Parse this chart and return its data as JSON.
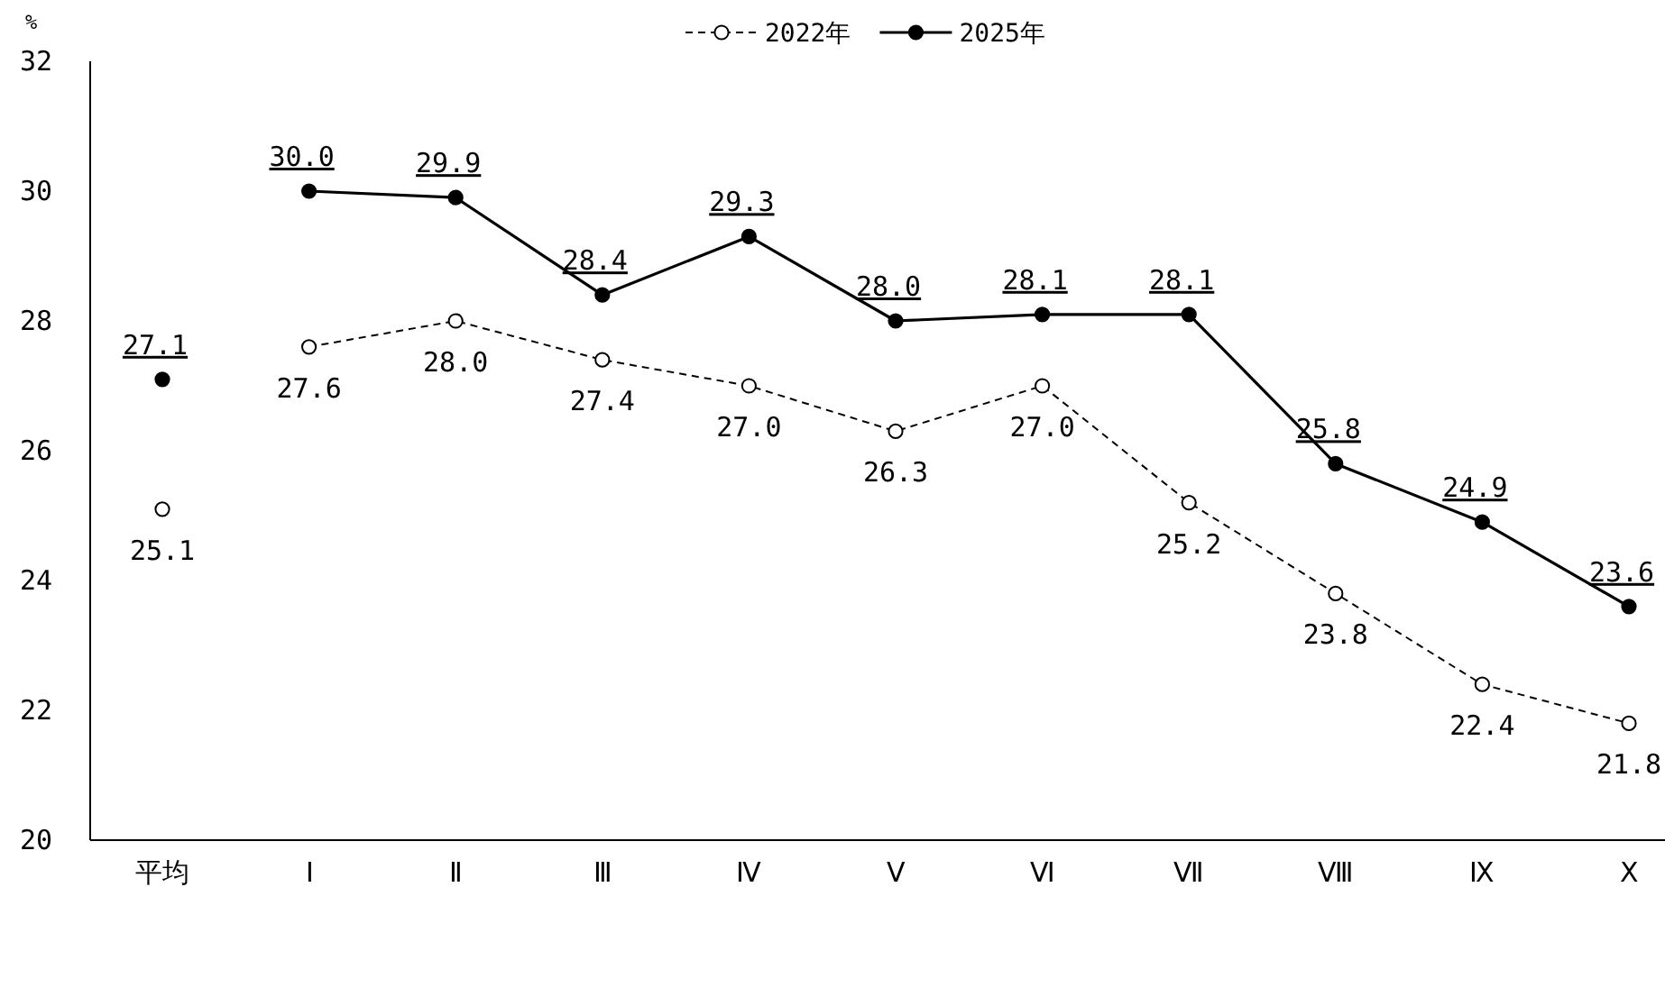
{
  "chart_data": {
    "type": "line",
    "ylabel": "%",
    "categories": [
      "平均",
      "Ⅰ",
      "Ⅱ",
      "Ⅲ",
      "Ⅳ",
      "Ⅴ",
      "Ⅵ",
      "Ⅶ",
      "Ⅷ",
      "Ⅸ",
      "Ⅹ"
    ],
    "series": [
      {
        "name": "2022年",
        "type": "line",
        "color": "#000000",
        "line_style": "dashed",
        "marker": "circle",
        "values": [
          null,
          27.6,
          28.0,
          27.4,
          27.0,
          26.3,
          27.0,
          25.2,
          23.8,
          22.4,
          21.8
        ],
        "value_labels": [
          null,
          "27.6",
          "28.0",
          "27.4",
          "27.0",
          "26.3",
          "27.0",
          "25.2",
          "23.8",
          "22.4",
          "21.8"
        ]
      },
      {
        "name": "2025年",
        "type": "line",
        "color": "#000000",
        "line_style": "solid",
        "marker": "circle",
        "values": [
          null,
          30.0,
          29.9,
          28.4,
          29.3,
          28.0,
          28.1,
          28.1,
          25.8,
          24.9,
          23.6
        ],
        "value_labels": [
          null,
          "30.0",
          "29.9",
          "28.4",
          "29.3",
          "28.0",
          "28.1",
          "28.1",
          "25.8",
          "24.9",
          "23.6"
        ]
      },
      {
        "type": "scatter",
        "color": "#000000",
        "line_style": "dashed",
        "marker": "circle",
        "values": [
          25.1,
          null,
          null,
          null,
          null,
          null,
          null,
          null,
          null,
          null,
          null
        ],
        "value_labels": [
          "25.1",
          null,
          null,
          null,
          null,
          null,
          null,
          null,
          null,
          null,
          null
        ]
      },
      {
        "type": "scatter",
        "color": "#000000",
        "line_style": "solid",
        "marker": "circle",
        "values": [
          27.1,
          null,
          null,
          null,
          null,
          null,
          null,
          null,
          null,
          null,
          null
        ],
        "value_labels": [
          "27.1",
          null,
          null,
          null,
          null,
          null,
          null,
          null,
          null,
          null,
          null
        ]
      }
    ],
    "ylim": [
      20,
      32
    ],
    "yticks": [
      20,
      22,
      24,
      26,
      28,
      30,
      32
    ],
    "legend": "top",
    "grid": false
  }
}
